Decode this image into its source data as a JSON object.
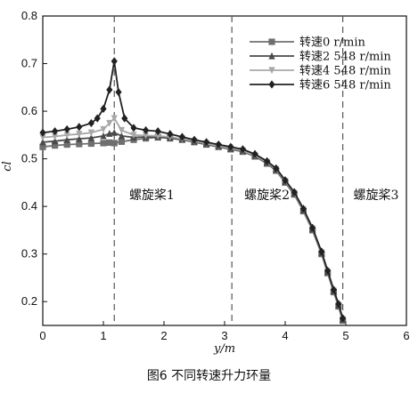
{
  "chart_data": {
    "type": "line",
    "xlabel": "y/m",
    "ylabel": "cl",
    "xlim": [
      0,
      6
    ],
    "ylim": [
      0.15,
      0.8
    ],
    "xticks": [
      0,
      1,
      2,
      3,
      4,
      5,
      6
    ],
    "yticks": [
      0.2,
      0.3,
      0.4,
      0.5,
      0.6,
      0.7,
      0.8
    ],
    "grid": false,
    "legend_position": "top-right",
    "vlines": [
      1.18,
      3.12,
      4.95
    ],
    "region_labels": [
      {
        "text": "螺旋桨1",
        "x": 1.8,
        "y": 0.415
      },
      {
        "text": "螺旋桨2",
        "x": 3.7,
        "y": 0.415
      },
      {
        "text": "螺旋桨3",
        "x": 5.5,
        "y": 0.415
      }
    ],
    "series": [
      {
        "name": "转速0  r/min",
        "marker": "square",
        "color": "#6f6f6f",
        "x": [
          0,
          0.2,
          0.4,
          0.6,
          0.8,
          1.0,
          1.1,
          1.18,
          1.3,
          1.5,
          1.7,
          1.9,
          2.1,
          2.3,
          2.5,
          2.7,
          2.9,
          3.1,
          3.3,
          3.5,
          3.7,
          3.85,
          4.0,
          4.15,
          4.3,
          4.45,
          4.6,
          4.7,
          4.8,
          4.88,
          4.95
        ],
        "y": [
          0.525,
          0.528,
          0.53,
          0.531,
          0.532,
          0.533,
          0.534,
          0.533,
          0.536,
          0.54,
          0.543,
          0.545,
          0.543,
          0.54,
          0.535,
          0.53,
          0.525,
          0.52,
          0.515,
          0.505,
          0.49,
          0.475,
          0.45,
          0.425,
          0.39,
          0.35,
          0.3,
          0.26,
          0.22,
          0.19,
          0.16
        ]
      },
      {
        "name": "转速2 548  r/min",
        "marker": "triangle-up",
        "color": "#4a4a4a",
        "x": [
          0,
          0.2,
          0.4,
          0.6,
          0.8,
          1.0,
          1.1,
          1.18,
          1.3,
          1.5,
          1.7,
          1.9,
          2.1,
          2.3,
          2.5,
          2.7,
          2.9,
          3.1,
          3.3,
          3.5,
          3.7,
          3.85,
          4.0,
          4.15,
          4.3,
          4.45,
          4.6,
          4.7,
          4.8,
          4.88,
          4.95
        ],
        "y": [
          0.535,
          0.537,
          0.54,
          0.542,
          0.544,
          0.548,
          0.553,
          0.555,
          0.548,
          0.545,
          0.546,
          0.546,
          0.544,
          0.541,
          0.536,
          0.531,
          0.526,
          0.521,
          0.516,
          0.506,
          0.492,
          0.477,
          0.452,
          0.427,
          0.392,
          0.352,
          0.302,
          0.262,
          0.222,
          0.192,
          0.162
        ]
      },
      {
        "name": "转速4 548  r/min",
        "marker": "triangle-down",
        "color": "#a8a8a8",
        "x": [
          0,
          0.2,
          0.4,
          0.6,
          0.8,
          1.0,
          1.1,
          1.18,
          1.3,
          1.5,
          1.7,
          1.9,
          2.1,
          2.3,
          2.5,
          2.7,
          2.9,
          3.1,
          3.3,
          3.5,
          3.7,
          3.85,
          4.0,
          4.15,
          4.3,
          4.45,
          4.6,
          4.7,
          4.8,
          4.88,
          4.95
        ],
        "y": [
          0.545,
          0.547,
          0.55,
          0.552,
          0.555,
          0.562,
          0.575,
          0.585,
          0.56,
          0.55,
          0.549,
          0.548,
          0.546,
          0.542,
          0.537,
          0.532,
          0.527,
          0.522,
          0.517,
          0.507,
          0.493,
          0.478,
          0.453,
          0.428,
          0.393,
          0.353,
          0.303,
          0.263,
          0.223,
          0.193,
          0.163
        ]
      },
      {
        "name": "转速6 548  r/min",
        "marker": "diamond",
        "color": "#222222",
        "x": [
          0,
          0.2,
          0.4,
          0.6,
          0.8,
          0.9,
          1.0,
          1.1,
          1.18,
          1.25,
          1.35,
          1.5,
          1.7,
          1.9,
          2.1,
          2.3,
          2.5,
          2.7,
          2.9,
          3.1,
          3.3,
          3.5,
          3.7,
          3.85,
          4.0,
          4.15,
          4.3,
          4.45,
          4.6,
          4.7,
          4.8,
          4.88,
          4.95
        ],
        "y": [
          0.555,
          0.558,
          0.562,
          0.567,
          0.575,
          0.585,
          0.605,
          0.645,
          0.705,
          0.64,
          0.585,
          0.565,
          0.56,
          0.558,
          0.552,
          0.546,
          0.54,
          0.535,
          0.53,
          0.525,
          0.52,
          0.51,
          0.495,
          0.48,
          0.455,
          0.43,
          0.395,
          0.355,
          0.305,
          0.265,
          0.225,
          0.195,
          0.165
        ]
      }
    ]
  },
  "caption": "图6  不同转速升力环量"
}
